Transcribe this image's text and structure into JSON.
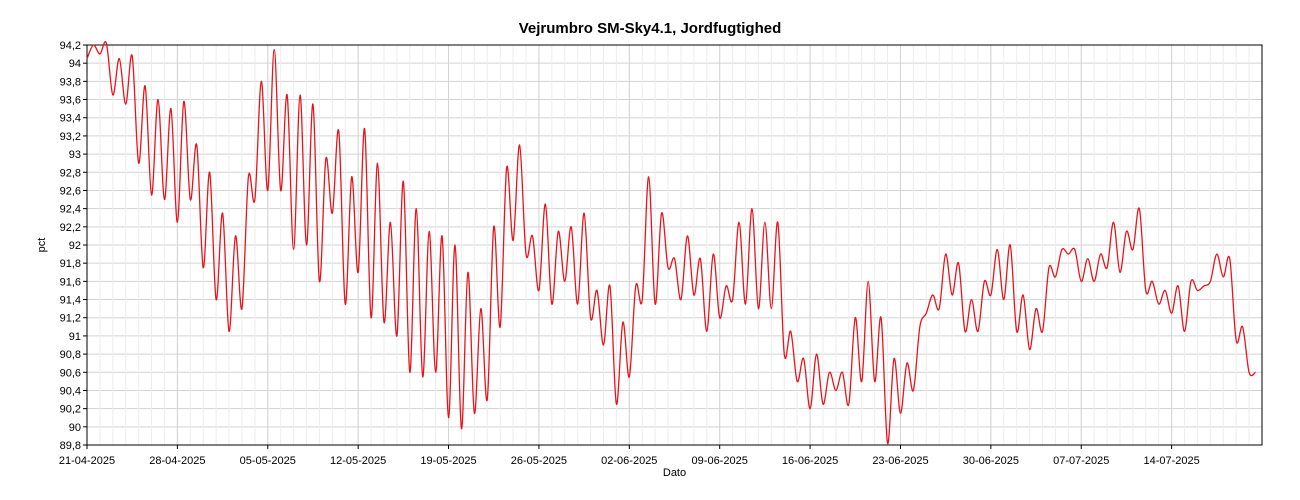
{
  "chart_data": {
    "type": "line",
    "title": "Vejrumbro SM-Sky4.1, Jordfugtighed",
    "xlabel": "Dato",
    "ylabel": "pct",
    "ylim": [
      89.8,
      94.2
    ],
    "ytick_values": [
      89.8,
      90,
      90.2,
      90.4,
      90.6,
      90.8,
      91,
      91.2,
      91.4,
      91.6,
      91.8,
      92,
      92.2,
      92.4,
      92.6,
      92.8,
      93,
      93.2,
      93.4,
      93.6,
      93.8,
      94,
      94.2
    ],
    "ytick_labels": [
      "89,8",
      "90",
      "90,2",
      "90,4",
      "90,6",
      "90,8",
      "91",
      "91,2",
      "91,4",
      "91,6",
      "91,8",
      "92",
      "92,2",
      "92,4",
      "92,6",
      "92,8",
      "93",
      "93,2",
      "93,4",
      "93,6",
      "93,8",
      "94",
      "94,2"
    ],
    "xlim": [
      "2025-04-21",
      "2025-07-21"
    ],
    "xtick_labels": [
      "21-04-2025",
      "28-04-2025",
      "05-05-2025",
      "12-05-2025",
      "19-05-2025",
      "26-05-2025",
      "02-06-2025",
      "09-06-2025",
      "16-06-2025",
      "23-06-2025",
      "30-06-2025",
      "07-07-2025",
      "14-07-2025"
    ],
    "xtick_dates": [
      "2025-04-21",
      "2025-04-28",
      "2025-05-05",
      "2025-05-12",
      "2025-05-19",
      "2025-05-26",
      "2025-06-02",
      "2025-06-09",
      "2025-06-16",
      "2025-06-23",
      "2025-06-30",
      "2025-07-07",
      "2025-07-14"
    ],
    "grid": true,
    "series": [
      {
        "color": "#e8141b",
        "x": [
          "2025-04-21",
          "2025-04-21",
          "2025-04-22",
          "2025-04-22",
          "2025-04-23",
          "2025-04-23",
          "2025-04-24",
          "2025-04-24",
          "2025-04-25",
          "2025-04-25",
          "2025-04-26",
          "2025-04-26",
          "2025-04-27",
          "2025-04-27",
          "2025-04-28",
          "2025-04-28",
          "2025-04-29",
          "2025-04-29",
          "2025-04-30",
          "2025-04-30",
          "2025-05-01",
          "2025-05-01",
          "2025-05-02",
          "2025-05-02",
          "2025-05-03",
          "2025-05-03",
          "2025-05-04",
          "2025-05-04",
          "2025-05-05",
          "2025-05-05",
          "2025-05-06",
          "2025-05-06",
          "2025-05-07",
          "2025-05-07",
          "2025-05-08",
          "2025-05-08",
          "2025-05-09",
          "2025-05-09",
          "2025-05-10",
          "2025-05-10",
          "2025-05-11",
          "2025-05-11",
          "2025-05-12",
          "2025-05-12",
          "2025-05-13",
          "2025-05-13",
          "2025-05-14",
          "2025-05-14",
          "2025-05-15",
          "2025-05-15",
          "2025-05-16",
          "2025-05-16",
          "2025-05-17",
          "2025-05-17",
          "2025-05-18",
          "2025-05-18",
          "2025-05-19",
          "2025-05-19",
          "2025-05-20",
          "2025-05-20",
          "2025-05-21",
          "2025-05-21",
          "2025-05-22",
          "2025-05-22",
          "2025-05-23",
          "2025-05-23",
          "2025-05-24",
          "2025-05-24",
          "2025-05-25",
          "2025-05-25",
          "2025-05-26",
          "2025-05-26",
          "2025-05-27",
          "2025-05-27",
          "2025-05-28",
          "2025-05-28",
          "2025-05-29",
          "2025-05-29",
          "2025-05-30",
          "2025-05-30",
          "2025-05-31",
          "2025-05-31",
          "2025-06-01",
          "2025-06-01",
          "2025-06-02",
          "2025-06-02",
          "2025-06-03",
          "2025-06-03",
          "2025-06-04",
          "2025-06-04",
          "2025-06-05",
          "2025-06-05",
          "2025-06-06",
          "2025-06-06",
          "2025-06-07",
          "2025-06-07",
          "2025-06-08",
          "2025-06-08",
          "2025-06-09",
          "2025-06-09",
          "2025-06-10",
          "2025-06-10",
          "2025-06-11",
          "2025-06-11",
          "2025-06-12",
          "2025-06-12",
          "2025-06-13",
          "2025-06-13",
          "2025-06-14",
          "2025-06-14",
          "2025-06-15",
          "2025-06-15",
          "2025-06-16",
          "2025-06-16",
          "2025-06-17",
          "2025-06-17",
          "2025-06-18",
          "2025-06-18",
          "2025-06-19",
          "2025-06-19",
          "2025-06-20",
          "2025-06-20",
          "2025-06-21",
          "2025-06-21",
          "2025-06-22",
          "2025-06-22",
          "2025-06-23",
          "2025-06-23",
          "2025-06-24",
          "2025-06-24",
          "2025-06-25",
          "2025-06-25",
          "2025-06-26",
          "2025-06-26",
          "2025-06-27",
          "2025-06-27",
          "2025-06-28",
          "2025-06-28",
          "2025-06-29",
          "2025-06-29",
          "2025-06-30",
          "2025-06-30",
          "2025-07-01",
          "2025-07-01",
          "2025-07-02",
          "2025-07-02",
          "2025-07-03",
          "2025-07-03",
          "2025-07-04",
          "2025-07-04",
          "2025-07-05",
          "2025-07-05",
          "2025-07-06",
          "2025-07-06",
          "2025-07-07",
          "2025-07-07",
          "2025-07-08",
          "2025-07-08",
          "2025-07-09",
          "2025-07-09",
          "2025-07-10",
          "2025-07-10",
          "2025-07-11",
          "2025-07-11",
          "2025-07-12",
          "2025-07-12",
          "2025-07-13",
          "2025-07-13",
          "2025-07-14",
          "2025-07-14",
          "2025-07-15",
          "2025-07-15",
          "2025-07-16",
          "2025-07-16",
          "2025-07-17",
          "2025-07-17",
          "2025-07-18",
          "2025-07-18",
          "2025-07-19",
          "2025-07-19",
          "2025-07-20",
          "2025-07-20"
        ],
        "values": [
          94.05,
          94.2,
          94.1,
          94.22,
          93.65,
          94.05,
          93.55,
          94.08,
          92.9,
          93.75,
          92.55,
          93.6,
          92.5,
          93.5,
          92.25,
          93.58,
          92.5,
          93.1,
          91.75,
          92.8,
          91.4,
          92.35,
          91.05,
          92.1,
          91.3,
          92.75,
          92.5,
          93.8,
          92.6,
          94.15,
          92.6,
          93.65,
          91.95,
          93.65,
          92.0,
          93.55,
          91.6,
          92.95,
          92.35,
          93.25,
          91.35,
          92.75,
          91.7,
          93.28,
          91.2,
          92.9,
          91.15,
          92.25,
          91.0,
          92.7,
          90.6,
          92.4,
          90.55,
          92.15,
          90.6,
          92.1,
          90.1,
          92.0,
          89.98,
          91.7,
          90.15,
          91.3,
          90.3,
          92.2,
          91.1,
          92.85,
          92.05,
          93.1,
          91.9,
          92.1,
          91.5,
          92.45,
          91.35,
          92.15,
          91.6,
          92.2,
          91.35,
          92.35,
          91.2,
          91.5,
          90.9,
          91.55,
          90.25,
          91.15,
          90.55,
          91.55,
          91.4,
          92.75,
          91.35,
          92.35,
          91.75,
          91.85,
          91.4,
          92.1,
          91.45,
          91.85,
          91.05,
          91.9,
          91.2,
          91.55,
          91.4,
          92.25,
          91.35,
          92.4,
          91.3,
          92.25,
          91.3,
          92.25,
          90.8,
          91.05,
          90.5,
          90.75,
          90.2,
          90.8,
          90.25,
          90.6,
          90.4,
          90.6,
          90.25,
          91.2,
          90.5,
          91.6,
          90.5,
          91.2,
          89.82,
          90.75,
          90.15,
          90.7,
          90.4,
          91.1,
          91.25,
          91.45,
          91.3,
          91.9,
          91.45,
          91.8,
          91.05,
          91.4,
          91.05,
          91.6,
          91.45,
          91.95,
          91.4,
          92.0,
          91.05,
          91.45,
          90.85,
          91.3,
          91.05,
          91.75,
          91.65,
          91.95,
          91.9,
          91.95,
          91.6,
          91.85,
          91.6,
          91.9,
          91.75,
          92.25,
          91.7,
          92.15,
          91.95,
          92.4,
          91.5,
          91.6,
          91.35,
          91.5,
          91.25,
          91.55,
          91.05,
          91.6,
          91.5,
          91.55,
          91.6,
          91.9,
          91.65,
          91.85,
          90.95,
          91.1,
          90.6,
          90.6
        ]
      }
    ]
  }
}
